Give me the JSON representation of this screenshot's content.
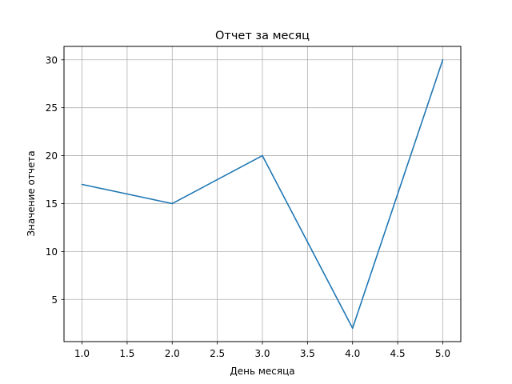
{
  "chart_data": {
    "type": "line",
    "title": "Отчет за месяц",
    "xlabel": "День месяца",
    "ylabel": "Значение отчета",
    "x": [
      1,
      2,
      3,
      4,
      5
    ],
    "series": [
      {
        "values": [
          17,
          15,
          20,
          2,
          30
        ],
        "color": "#1f77b4"
      }
    ],
    "xlim": [
      0.8,
      5.2
    ],
    "ylim": [
      0.6,
      31.4
    ],
    "xticks": [
      "1.0",
      "1.5",
      "2.0",
      "2.5",
      "3.0",
      "3.5",
      "4.0",
      "4.5",
      "5.0"
    ],
    "yticks": [
      "5",
      "10",
      "15",
      "20",
      "25",
      "30"
    ],
    "grid": true
  }
}
